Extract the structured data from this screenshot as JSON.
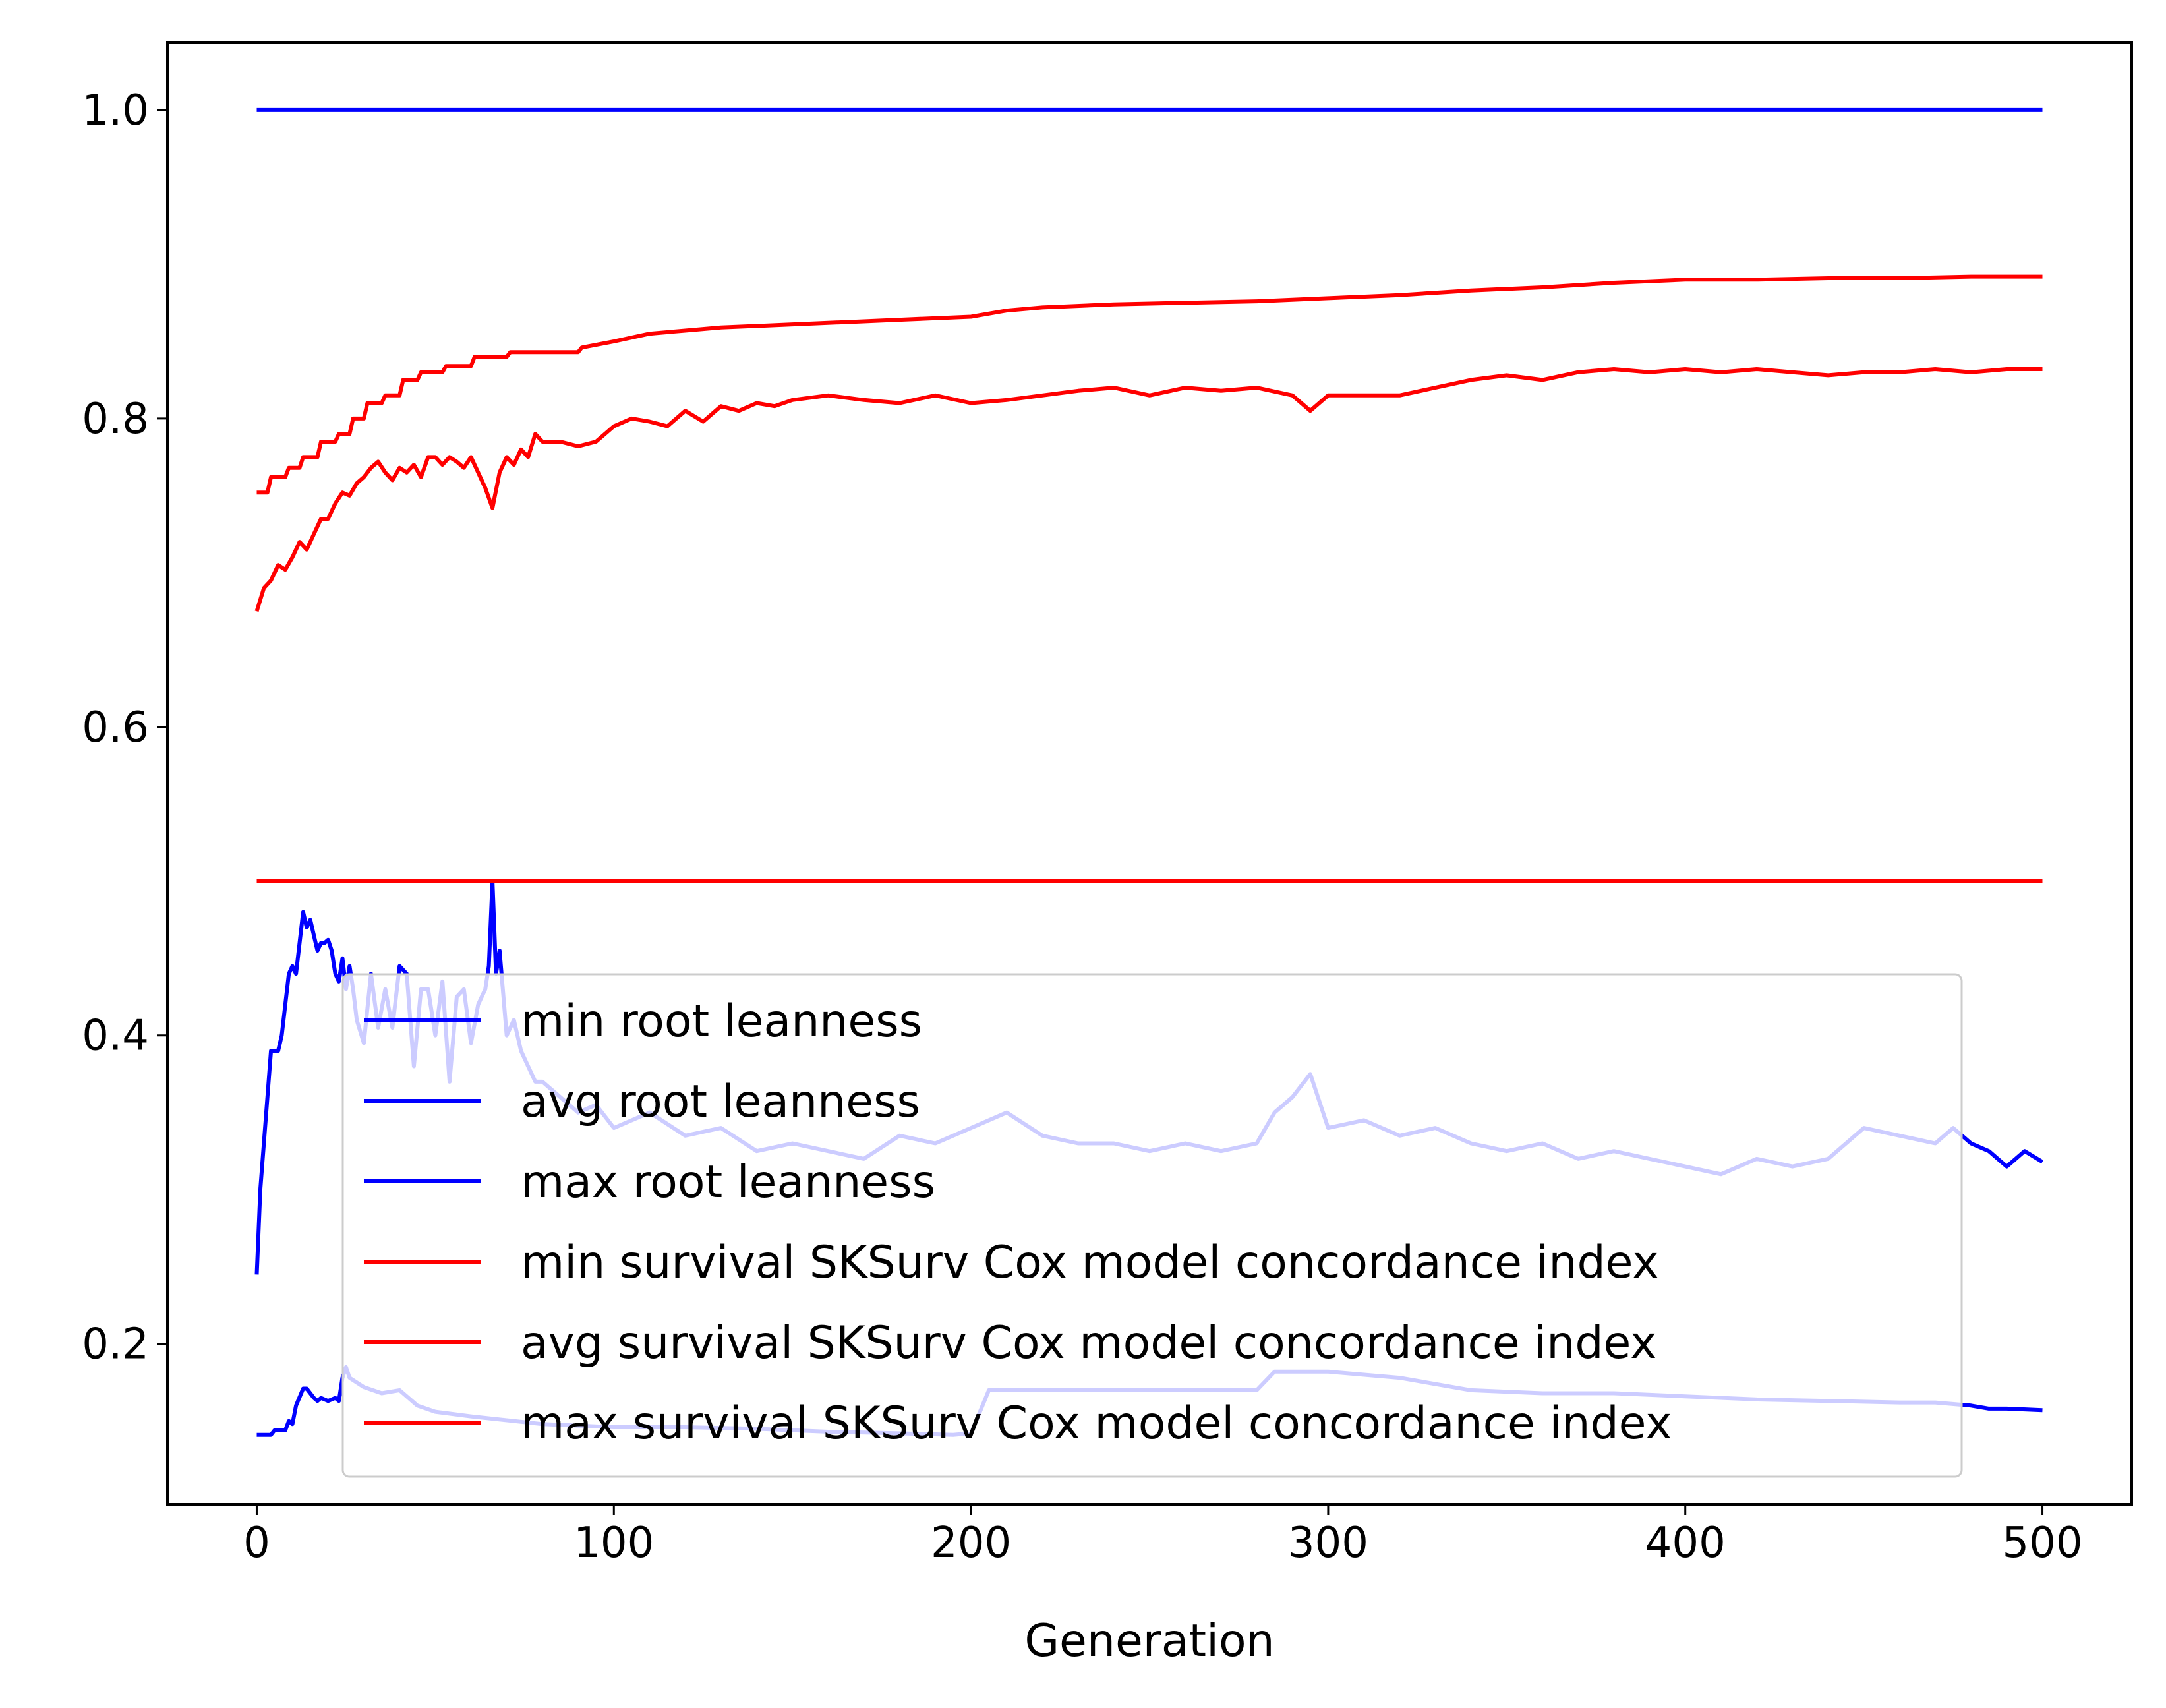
{
  "chart_data": {
    "type": "line",
    "title": "",
    "xlabel": "Generation",
    "ylabel": "",
    "xlim": [
      -25,
      525
    ],
    "ylim": [
      0.096,
      1.044
    ],
    "xticks": [
      0,
      100,
      200,
      300,
      400,
      500
    ],
    "xtick_labels": [
      "0",
      "100",
      "200",
      "300",
      "400",
      "500"
    ],
    "yticks": [
      0.2,
      0.4,
      0.6,
      0.8,
      1.0
    ],
    "ytick_labels": [
      "0.2",
      "0.4",
      "0.6",
      "0.8",
      "1.0"
    ],
    "grid": false,
    "legend_position": "lower-right",
    "series": [
      {
        "name": "min root leanness",
        "color": "#0000ff",
        "x": [
          0,
          4,
          5,
          8,
          9,
          10,
          11,
          13,
          14,
          16,
          17,
          18,
          20,
          22,
          23,
          24,
          25,
          26,
          30,
          35,
          40,
          45,
          50,
          60,
          80,
          100,
          120,
          140,
          160,
          180,
          195,
          200,
          205,
          220,
          250,
          280,
          285,
          290,
          300,
          320,
          340,
          360,
          380,
          400,
          420,
          440,
          460,
          470,
          480,
          485,
          490,
          500
        ],
        "y": [
          0.141,
          0.141,
          0.144,
          0.144,
          0.15,
          0.148,
          0.16,
          0.171,
          0.171,
          0.165,
          0.163,
          0.165,
          0.163,
          0.165,
          0.163,
          0.178,
          0.185,
          0.178,
          0.172,
          0.168,
          0.17,
          0.16,
          0.156,
          0.153,
          0.148,
          0.146,
          0.146,
          0.145,
          0.143,
          0.142,
          0.141,
          0.142,
          0.17,
          0.17,
          0.17,
          0.17,
          0.182,
          0.182,
          0.182,
          0.178,
          0.17,
          0.168,
          0.168,
          0.166,
          0.164,
          0.163,
          0.162,
          0.162,
          0.16,
          0.158,
          0.158,
          0.157
        ]
      },
      {
        "name": "avg root leanness",
        "color": "#0000ff",
        "x": [
          0,
          1,
          2,
          3,
          4,
          5,
          6,
          7,
          8,
          9,
          10,
          11,
          12,
          13,
          14,
          15,
          16,
          17,
          18,
          19,
          20,
          21,
          22,
          23,
          24,
          25,
          26,
          27,
          28,
          30,
          32,
          34,
          36,
          38,
          40,
          42,
          44,
          46,
          48,
          50,
          52,
          54,
          56,
          58,
          60,
          62,
          64,
          65,
          66,
          67,
          68,
          70,
          72,
          74,
          76,
          78,
          80,
          85,
          90,
          95,
          100,
          110,
          120,
          130,
          140,
          150,
          160,
          170,
          180,
          190,
          200,
          210,
          220,
          230,
          240,
          250,
          260,
          270,
          280,
          285,
          290,
          295,
          300,
          310,
          320,
          330,
          340,
          350,
          360,
          370,
          380,
          390,
          400,
          410,
          420,
          430,
          440,
          450,
          460,
          470,
          475,
          480,
          485,
          490,
          495,
          500
        ],
        "y": [
          0.245,
          0.3,
          0.33,
          0.36,
          0.39,
          0.39,
          0.39,
          0.4,
          0.42,
          0.44,
          0.445,
          0.44,
          0.46,
          0.48,
          0.47,
          0.475,
          0.465,
          0.455,
          0.46,
          0.46,
          0.462,
          0.455,
          0.44,
          0.435,
          0.45,
          0.43,
          0.445,
          0.43,
          0.41,
          0.395,
          0.44,
          0.405,
          0.43,
          0.405,
          0.445,
          0.44,
          0.38,
          0.43,
          0.43,
          0.4,
          0.435,
          0.37,
          0.425,
          0.43,
          0.395,
          0.42,
          0.43,
          0.445,
          0.5,
          0.44,
          0.455,
          0.4,
          0.41,
          0.39,
          0.38,
          0.37,
          0.37,
          0.36,
          0.35,
          0.355,
          0.34,
          0.35,
          0.335,
          0.34,
          0.325,
          0.33,
          0.325,
          0.32,
          0.335,
          0.33,
          0.34,
          0.35,
          0.335,
          0.33,
          0.33,
          0.325,
          0.33,
          0.325,
          0.33,
          0.35,
          0.36,
          0.375,
          0.34,
          0.345,
          0.335,
          0.34,
          0.33,
          0.325,
          0.33,
          0.32,
          0.325,
          0.32,
          0.315,
          0.31,
          0.32,
          0.315,
          0.32,
          0.34,
          0.335,
          0.33,
          0.34,
          0.33,
          0.325,
          0.315,
          0.325,
          0.318
        ]
      },
      {
        "name": "max root leanness",
        "color": "#0000ff",
        "x": [
          0,
          500
        ],
        "y": [
          1.0,
          1.0
        ]
      },
      {
        "name": "min survival SKSurv Cox model concordance index",
        "color": "#ff0000",
        "x": [
          0,
          500
        ],
        "y": [
          0.5,
          0.5
        ]
      },
      {
        "name": "avg survival SKSurv Cox model concordance index",
        "color": "#ff0000",
        "x": [
          0,
          2,
          4,
          6,
          8,
          10,
          12,
          14,
          16,
          18,
          20,
          22,
          24,
          26,
          28,
          30,
          32,
          34,
          36,
          38,
          40,
          42,
          44,
          46,
          48,
          50,
          52,
          54,
          56,
          58,
          60,
          62,
          64,
          66,
          68,
          70,
          72,
          74,
          76,
          78,
          80,
          85,
          90,
          95,
          100,
          105,
          110,
          115,
          120,
          125,
          130,
          135,
          140,
          145,
          150,
          160,
          170,
          180,
          190,
          200,
          210,
          220,
          230,
          240,
          250,
          260,
          270,
          280,
          290,
          295,
          300,
          310,
          320,
          330,
          340,
          350,
          360,
          370,
          380,
          390,
          400,
          410,
          420,
          430,
          440,
          450,
          460,
          470,
          480,
          490,
          500
        ],
        "y": [
          0.675,
          0.69,
          0.695,
          0.705,
          0.702,
          0.71,
          0.72,
          0.715,
          0.725,
          0.735,
          0.735,
          0.745,
          0.752,
          0.75,
          0.758,
          0.762,
          0.768,
          0.772,
          0.765,
          0.76,
          0.768,
          0.765,
          0.77,
          0.762,
          0.775,
          0.775,
          0.77,
          0.775,
          0.772,
          0.768,
          0.775,
          0.765,
          0.755,
          0.742,
          0.765,
          0.775,
          0.77,
          0.78,
          0.775,
          0.79,
          0.785,
          0.785,
          0.782,
          0.785,
          0.795,
          0.8,
          0.798,
          0.795,
          0.805,
          0.798,
          0.808,
          0.805,
          0.81,
          0.808,
          0.812,
          0.815,
          0.812,
          0.81,
          0.815,
          0.81,
          0.812,
          0.815,
          0.818,
          0.82,
          0.815,
          0.82,
          0.818,
          0.82,
          0.815,
          0.805,
          0.815,
          0.815,
          0.815,
          0.82,
          0.825,
          0.828,
          0.825,
          0.83,
          0.832,
          0.83,
          0.832,
          0.83,
          0.832,
          0.83,
          0.828,
          0.83,
          0.83,
          0.832,
          0.83,
          0.832,
          0.832
        ]
      },
      {
        "name": "max survival SKSurv Cox model concordance index",
        "color": "#ff0000",
        "x": [
          0,
          3,
          4,
          8,
          9,
          12,
          13,
          17,
          18,
          22,
          23,
          26,
          27,
          30,
          31,
          35,
          36,
          40,
          41,
          45,
          46,
          52,
          53,
          60,
          61,
          70,
          71,
          90,
          91,
          100,
          110,
          120,
          130,
          140,
          160,
          180,
          200,
          210,
          220,
          240,
          260,
          280,
          290,
          300,
          320,
          340,
          360,
          380,
          400,
          420,
          440,
          460,
          480,
          500
        ],
        "y": [
          0.752,
          0.752,
          0.762,
          0.762,
          0.768,
          0.768,
          0.775,
          0.775,
          0.785,
          0.785,
          0.79,
          0.79,
          0.8,
          0.8,
          0.81,
          0.81,
          0.815,
          0.815,
          0.825,
          0.825,
          0.83,
          0.83,
          0.834,
          0.834,
          0.84,
          0.84,
          0.843,
          0.843,
          0.846,
          0.85,
          0.855,
          0.857,
          0.859,
          0.86,
          0.862,
          0.864,
          0.866,
          0.87,
          0.872,
          0.874,
          0.875,
          0.876,
          0.877,
          0.878,
          0.88,
          0.883,
          0.885,
          0.888,
          0.89,
          0.89,
          0.891,
          0.891,
          0.892,
          0.892
        ]
      }
    ]
  }
}
